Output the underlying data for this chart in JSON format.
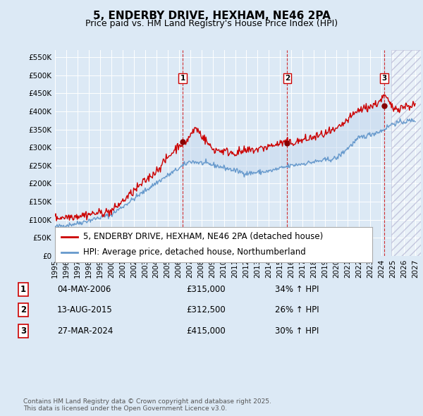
{
  "title": "5, ENDERBY DRIVE, HEXHAM, NE46 2PA",
  "subtitle": "Price paid vs. HM Land Registry's House Price Index (HPI)",
  "yticks": [
    0,
    50000,
    100000,
    150000,
    200000,
    250000,
    300000,
    350000,
    400000,
    450000,
    500000,
    550000
  ],
  "ytick_labels": [
    "£0",
    "£50K",
    "£100K",
    "£150K",
    "£200K",
    "£250K",
    "£300K",
    "£350K",
    "£400K",
    "£450K",
    "£500K",
    "£550K"
  ],
  "ylim": [
    0,
    570000
  ],
  "xlim_start": 1995.0,
  "xlim_end": 2027.5,
  "xtick_years": [
    1995,
    1996,
    1997,
    1998,
    1999,
    2000,
    2001,
    2002,
    2003,
    2004,
    2005,
    2006,
    2007,
    2008,
    2009,
    2010,
    2011,
    2012,
    2013,
    2014,
    2015,
    2016,
    2017,
    2018,
    2019,
    2020,
    2021,
    2022,
    2023,
    2024,
    2025,
    2026,
    2027
  ],
  "background_color": "#dce9f5",
  "plot_background": "#dce9f5",
  "grid_color": "#ffffff",
  "red_line_color": "#cc0000",
  "blue_line_color": "#6699cc",
  "shade_color": "#c5d8ee",
  "hatch_color": "#b0b8cc",
  "legend_label_red": "5, ENDERBY DRIVE, HEXHAM, NE46 2PA (detached house)",
  "legend_label_blue": "HPI: Average price, detached house, Northumberland",
  "transactions": [
    {
      "num": 1,
      "date": 2006.34,
      "price": 315000,
      "label": "04-MAY-2006",
      "hpi_pct": "34%",
      "x_vline": 2006.34
    },
    {
      "num": 2,
      "date": 2015.62,
      "price": 312500,
      "label": "13-AUG-2015",
      "hpi_pct": "26%",
      "x_vline": 2015.62
    },
    {
      "num": 3,
      "date": 2024.24,
      "price": 415000,
      "label": "27-MAR-2024",
      "hpi_pct": "30%",
      "x_vline": 2024.24
    }
  ],
  "footer_text": "Contains HM Land Registry data © Crown copyright and database right 2025.\nThis data is licensed under the Open Government Licence v3.0.",
  "title_fontsize": 11,
  "subtitle_fontsize": 9,
  "tick_fontsize": 7.5,
  "legend_fontsize": 8.5
}
